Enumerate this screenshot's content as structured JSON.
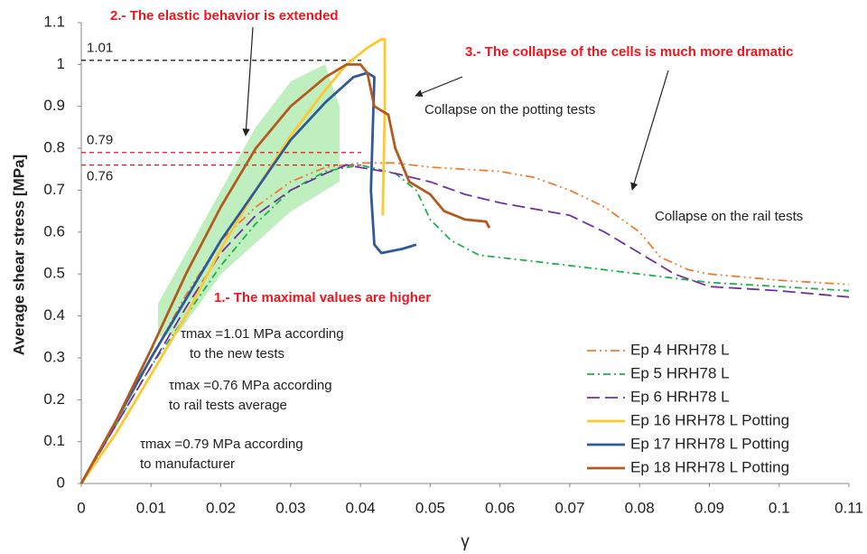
{
  "chart_data": {
    "type": "line",
    "y_label": "Average shear stress [MPa]",
    "x_label": "γ",
    "xlim": [
      0,
      0.11
    ],
    "xticks": [
      0,
      0.01,
      0.02,
      0.03,
      0.04,
      0.05,
      0.06,
      0.07,
      0.08,
      0.09,
      0.1,
      0.11
    ],
    "ylim": [
      0,
      1.1
    ],
    "yticks": [
      0,
      0.1,
      0.2,
      0.3,
      0.4,
      0.5,
      0.6,
      0.7,
      0.8,
      0.9,
      1,
      1.1
    ],
    "legend": "lower right",
    "reference_lines": [
      {
        "value": 1.01,
        "color": "#111111"
      },
      {
        "value": 0.79,
        "color": "#e8141e"
      },
      {
        "value": 0.76,
        "color": "#e8141e"
      }
    ],
    "annotations": [
      "2.- The elastic behavior is extended",
      "3.- The collapse of the cells is much more dramatic",
      "Collapse on the potting tests",
      "Collapse on the rail tests",
      "1.- The maximal values are higher",
      "τmax =1.01 MPa according",
      "to the new tests",
      "τmax =0.76 MPa according",
      "to rail tests average",
      "τmax =0.79 MPa according",
      "to manufacturer"
    ],
    "series": [
      {
        "name": "Ep 4 HRH78 L",
        "color": "#ed7d31",
        "style": "dashdotdot",
        "x": [
          0,
          0.005,
          0.01,
          0.015,
          0.02,
          0.025,
          0.03,
          0.035,
          0.04,
          0.045,
          0.05,
          0.06,
          0.065,
          0.07,
          0.075,
          0.08,
          0.083,
          0.087,
          0.09,
          0.1,
          0.11
        ],
        "values": [
          0,
          0.15,
          0.3,
          0.45,
          0.58,
          0.66,
          0.72,
          0.755,
          0.765,
          0.765,
          0.755,
          0.745,
          0.73,
          0.7,
          0.66,
          0.6,
          0.54,
          0.51,
          0.5,
          0.485,
          0.475
        ]
      },
      {
        "name": "Ep 5 HRH78 L",
        "color": "#1fb050",
        "style": "dashdot",
        "x": [
          0,
          0.005,
          0.01,
          0.015,
          0.02,
          0.025,
          0.03,
          0.035,
          0.04,
          0.045,
          0.048,
          0.05,
          0.053,
          0.057,
          0.065,
          0.075,
          0.08,
          0.09,
          0.1,
          0.11
        ],
        "values": [
          0,
          0.14,
          0.28,
          0.4,
          0.52,
          0.62,
          0.7,
          0.745,
          0.76,
          0.74,
          0.7,
          0.63,
          0.58,
          0.545,
          0.53,
          0.51,
          0.5,
          0.48,
          0.47,
          0.46
        ]
      },
      {
        "name": "Ep 6 HRH78 L",
        "color": "#7030a0",
        "style": "dash",
        "x": [
          0,
          0.005,
          0.01,
          0.015,
          0.02,
          0.025,
          0.03,
          0.035,
          0.038,
          0.045,
          0.05,
          0.055,
          0.06,
          0.07,
          0.075,
          0.08,
          0.085,
          0.09,
          0.1,
          0.11
        ],
        "values": [
          0,
          0.14,
          0.28,
          0.42,
          0.55,
          0.64,
          0.7,
          0.74,
          0.76,
          0.74,
          0.72,
          0.69,
          0.67,
          0.64,
          0.6,
          0.55,
          0.5,
          0.47,
          0.46,
          0.445
        ]
      },
      {
        "name": "Ep 16 HRH78 L Potting",
        "color": "#ffc830",
        "style": "solid",
        "x": [
          0,
          0.005,
          0.01,
          0.015,
          0.02,
          0.025,
          0.03,
          0.035,
          0.038,
          0.041,
          0.043,
          0.0435,
          0.0435,
          0.0432
        ],
        "values": [
          0,
          0.12,
          0.26,
          0.4,
          0.56,
          0.7,
          0.83,
          0.94,
          1,
          1.04,
          1.06,
          1.06,
          0.9,
          0.64
        ]
      },
      {
        "name": "Ep 17 HRH78 L Potting",
        "color": "#2e5a9c",
        "style": "solid",
        "x": [
          0,
          0.005,
          0.01,
          0.015,
          0.02,
          0.025,
          0.03,
          0.035,
          0.039,
          0.041,
          0.042,
          0.0415,
          0.042,
          0.043,
          0.046,
          0.048
        ],
        "values": [
          0,
          0.15,
          0.3,
          0.44,
          0.58,
          0.7,
          0.82,
          0.91,
          0.97,
          0.98,
          0.97,
          0.7,
          0.57,
          0.55,
          0.56,
          0.57
        ]
      },
      {
        "name": "Ep 18 HRH78 L Potting",
        "color": "#b55a1e",
        "style": "solid",
        "x": [
          0,
          0.005,
          0.01,
          0.015,
          0.02,
          0.025,
          0.03,
          0.035,
          0.038,
          0.04,
          0.041,
          0.042,
          0.044,
          0.045,
          0.047,
          0.05,
          0.052,
          0.055,
          0.058,
          0.0585
        ],
        "values": [
          0,
          0.15,
          0.32,
          0.5,
          0.66,
          0.8,
          0.9,
          0.97,
          1,
          1,
          0.98,
          0.9,
          0.88,
          0.8,
          0.72,
          0.69,
          0.65,
          0.63,
          0.625,
          0.61
        ]
      }
    ]
  }
}
